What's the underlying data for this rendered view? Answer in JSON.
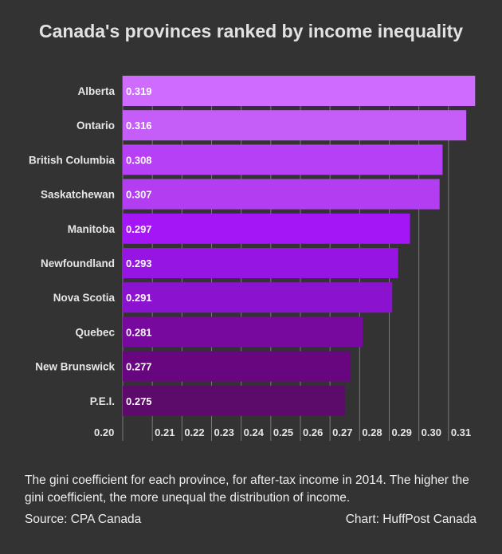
{
  "chart_data": {
    "type": "bar",
    "orientation": "horizontal",
    "title": "Canada's provinces ranked by income inequality",
    "categories": [
      "Alberta",
      "Ontario",
      "British Columbia",
      "Saskatchewan",
      "Manitoba",
      "Newfoundland",
      "Nova Scotia",
      "Quebec",
      "New Brunswick",
      "P.E.I."
    ],
    "values": [
      0.319,
      0.316,
      0.308,
      0.307,
      0.297,
      0.293,
      0.291,
      0.281,
      0.277,
      0.275
    ],
    "value_labels": [
      "0.319",
      "0.316",
      "0.308",
      "0.307",
      "0.297",
      "0.293",
      "0.291",
      "0.281",
      "0.277",
      "0.275"
    ],
    "bar_colors": [
      "#cf6bff",
      "#c55ef9",
      "#b640f5",
      "#b23df1",
      "#a416f5",
      "#9715e2",
      "#8b12cf",
      "#77099e",
      "#67067e",
      "#5c0b6a"
    ],
    "xticks": [
      0.2,
      0.21,
      0.22,
      0.23,
      0.24,
      0.25,
      0.26,
      0.27,
      0.28,
      0.29,
      0.3,
      0.31
    ],
    "xtick_labels": [
      "0.20",
      "0.21",
      "0.22",
      "0.23",
      "0.24",
      "0.25",
      "0.26",
      "0.27",
      "0.28",
      "0.29",
      "0.30",
      "0.31"
    ],
    "xlim": [
      0.2,
      0.32
    ],
    "grid": true,
    "xlabel": "",
    "ylabel": ""
  },
  "caption": "The gini coefficient for each province, for after-tax income in 2014. The higher the gini coefficient, the more unequal the distribution of income.",
  "source": "Source: CPA Canada",
  "credit": "Chart: HuffPost Canada"
}
